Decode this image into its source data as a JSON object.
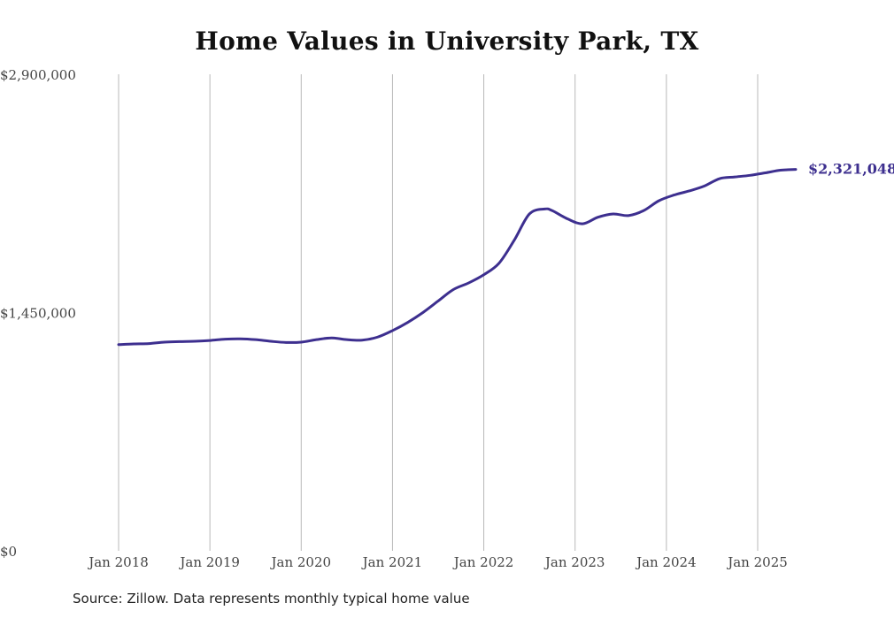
{
  "chart_data": {
    "type": "line",
    "title": "Home Values in University Park, TX",
    "xlabel": "",
    "ylabel": "",
    "x_ticks": [
      "Jan 2018",
      "Jan 2019",
      "Jan 2020",
      "Jan 2021",
      "Jan 2022",
      "Jan 2023",
      "Jan 2024",
      "Jan 2025"
    ],
    "y_ticks": [
      {
        "value": 0,
        "label": "$0"
      },
      {
        "value": 1450000,
        "label": "$1,450,000"
      },
      {
        "value": 2900000,
        "label": "$2,900,000"
      }
    ],
    "ylim": [
      0,
      2900000
    ],
    "xlim": [
      "Jan 2018",
      "Jan 2025"
    ],
    "grid": {
      "vertical": true,
      "horizontal": false
    },
    "line_color": "#3d2f8f",
    "series": [
      {
        "points": [
          [
            "2018-01",
            1255000
          ],
          [
            "2018-03",
            1259000
          ],
          [
            "2018-05",
            1261000
          ],
          [
            "2018-07",
            1270000
          ],
          [
            "2018-09",
            1273000
          ],
          [
            "2018-11",
            1275000
          ],
          [
            "2019-01",
            1280000
          ],
          [
            "2019-03",
            1288000
          ],
          [
            "2019-05",
            1290000
          ],
          [
            "2019-07",
            1285000
          ],
          [
            "2019-09",
            1275000
          ],
          [
            "2019-11",
            1268000
          ],
          [
            "2020-01",
            1270000
          ],
          [
            "2020-03",
            1285000
          ],
          [
            "2020-05",
            1295000
          ],
          [
            "2020-07",
            1285000
          ],
          [
            "2020-09",
            1282000
          ],
          [
            "2020-11",
            1300000
          ],
          [
            "2021-01",
            1340000
          ],
          [
            "2021-03",
            1390000
          ],
          [
            "2021-05",
            1450000
          ],
          [
            "2021-07",
            1520000
          ],
          [
            "2021-09",
            1590000
          ],
          [
            "2021-11",
            1630000
          ],
          [
            "2022-01",
            1680000
          ],
          [
            "2022-03",
            1750000
          ],
          [
            "2022-05",
            1890000
          ],
          [
            "2022-07",
            2050000
          ],
          [
            "2022-09",
            2080000
          ],
          [
            "2022-10",
            2070000
          ],
          [
            "2022-12",
            2020000
          ],
          [
            "2023-02",
            1990000
          ],
          [
            "2023-04",
            2030000
          ],
          [
            "2023-06",
            2050000
          ],
          [
            "2023-08",
            2040000
          ],
          [
            "2023-10",
            2070000
          ],
          [
            "2023-12",
            2130000
          ],
          [
            "2024-02",
            2165000
          ],
          [
            "2024-04",
            2190000
          ],
          [
            "2024-06",
            2220000
          ],
          [
            "2024-08",
            2265000
          ],
          [
            "2024-10",
            2275000
          ],
          [
            "2024-12",
            2285000
          ],
          [
            "2025-02",
            2300000
          ],
          [
            "2025-04",
            2316000
          ],
          [
            "2025-06",
            2321048
          ]
        ],
        "end_label": "$2,321,048"
      }
    ]
  },
  "source": "Source: Zillow. Data represents monthly typical home value"
}
